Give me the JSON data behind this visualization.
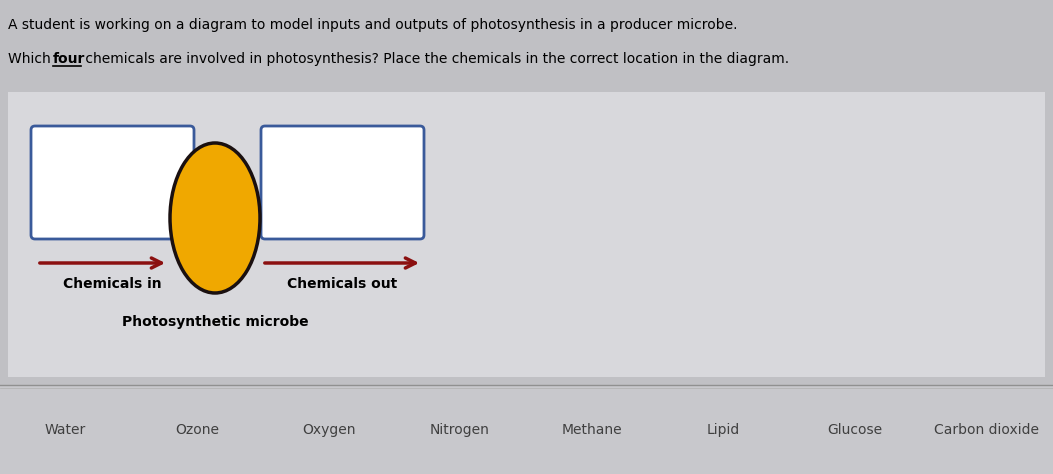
{
  "title_line1": "A student is working on a diagram to model inputs and outputs of photosynthesis in a producer microbe.",
  "background_color": "#c0c0c4",
  "diagram_bg": "#d8d8dc",
  "bottom_bar_bg": "#c8c8cc",
  "box_edge_color": "#3a5a9a",
  "arrow_color": "#8b1010",
  "ellipse_face": "#f0a800",
  "ellipse_edge": "#1a1010",
  "label_chemicals_in": "Chemicals in",
  "label_chemicals_out": "Chemicals out",
  "label_microbe": "Photosynthetic microbe",
  "chemicals": [
    "Water",
    "Ozone",
    "Oxygen",
    "Nitrogen",
    "Methane",
    "Lipid",
    "Glucose",
    "Carbon dioxide"
  ],
  "figsize": [
    10.53,
    4.74
  ],
  "dpi": 100
}
